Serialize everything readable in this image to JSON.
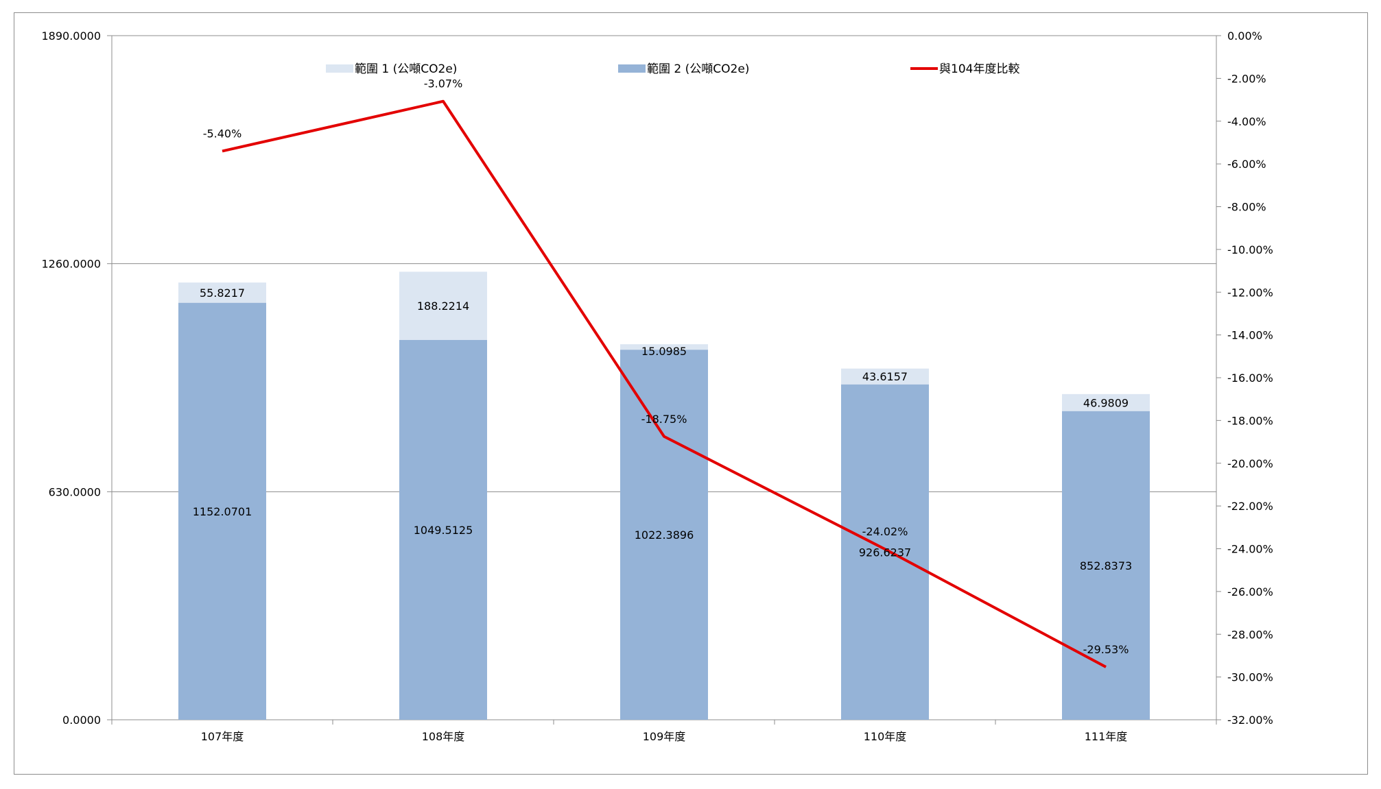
{
  "chart_data": {
    "type": "bar",
    "stacked": true,
    "categories": [
      "107年度",
      "108年度",
      "109年度",
      "110年度",
      "111年度"
    ],
    "series": [
      {
        "name": "範圍 1 (公噸CO2e)",
        "axis": "left",
        "color": "#dce6f2",
        "values": [
          55.8217,
          188.2214,
          15.0985,
          43.6157,
          46.9809
        ],
        "labels": [
          "55.8217",
          "188.2214",
          "15.0985",
          "43.6157",
          "46.9809"
        ]
      },
      {
        "name": "範圍 2 (公噸CO2e)",
        "axis": "left",
        "color": "#95b3d7",
        "values": [
          1152.0701,
          1049.5125,
          1022.3896,
          926.6237,
          852.8373
        ],
        "labels": [
          "1152.0701",
          "1049.5125",
          "1022.3896",
          "926.6237",
          "852.8373"
        ]
      },
      {
        "name": "與104年度比較",
        "axis": "right",
        "type": "line",
        "color": "#e30000",
        "values": [
          -5.4,
          -3.07,
          -18.75,
          -24.02,
          -29.53
        ],
        "labels": [
          "-5.40%",
          "-3.07%",
          "-18.75%",
          "-24.02%",
          "-29.53%"
        ]
      }
    ],
    "y_left": {
      "min": 0,
      "max": 1890,
      "ticks": [
        0,
        630,
        1260,
        1890
      ],
      "tick_labels": [
        "0.0000",
        "630.0000",
        "1260.0000",
        "1890.0000"
      ]
    },
    "y_right": {
      "min": -32,
      "max": 0,
      "ticks": [
        0,
        -2,
        -4,
        -6,
        -8,
        -10,
        -12,
        -14,
        -16,
        -18,
        -20,
        -22,
        -24,
        -26,
        -28,
        -30,
        -32
      ],
      "tick_labels": [
        "0.00%",
        "-2.00%",
        "-4.00%",
        "-6.00%",
        "-8.00%",
        "-10.00%",
        "-12.00%",
        "-14.00%",
        "-16.00%",
        "-18.00%",
        "-20.00%",
        "-22.00%",
        "-24.00%",
        "-26.00%",
        "-28.00%",
        "-30.00%",
        "-32.00%"
      ]
    },
    "gridlines": true,
    "legend_position": "top",
    "title": "",
    "xlabel": "",
    "ylabel": ""
  }
}
